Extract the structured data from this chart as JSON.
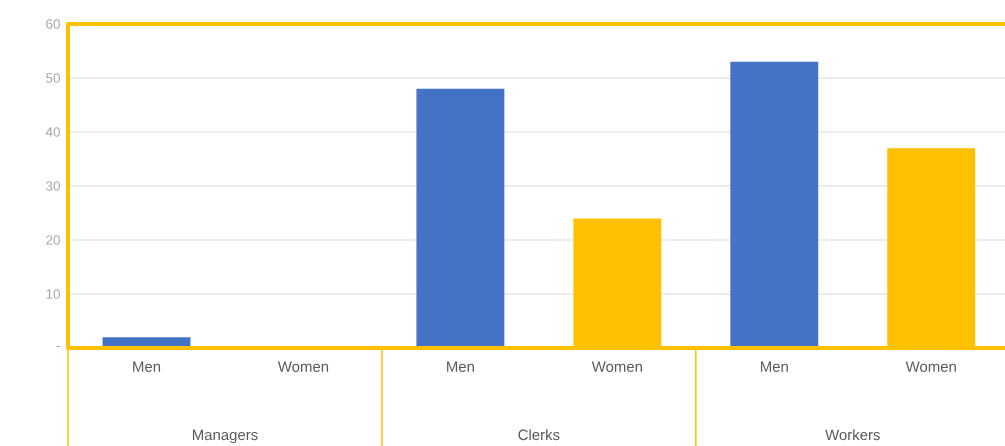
{
  "chart_data": {
    "type": "bar",
    "categories": [
      "Men",
      "Women",
      "Men",
      "Women",
      "Men",
      "Women"
    ],
    "values": [
      2,
      0,
      48,
      24,
      53,
      37
    ],
    "colors": [
      "#4472c4",
      "#ffc000",
      "#4472c4",
      "#ffc000",
      "#4472c4",
      "#ffc000"
    ],
    "annotations": [
      "Managers",
      "Clerks",
      "Workers"
    ],
    "ylim": [
      0,
      60
    ],
    "yticks": [
      {
        "value": 0,
        "label": "-"
      },
      10,
      20,
      30,
      40,
      50,
      60
    ],
    "grid": "y"
  }
}
